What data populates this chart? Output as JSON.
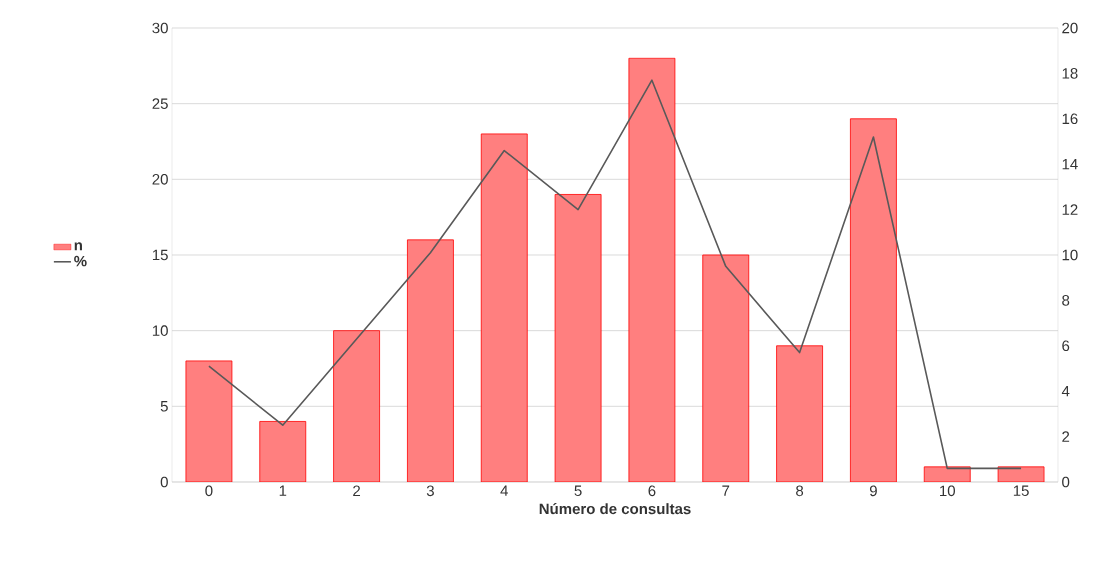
{
  "chart_data": {
    "type": "bar",
    "xlabel": "Número de consultas",
    "categories": [
      "0",
      "1",
      "2",
      "3",
      "4",
      "5",
      "6",
      "7",
      "8",
      "9",
      "10",
      "15"
    ],
    "series": [
      {
        "name": "n",
        "color": "#ff7f7f",
        "values": [
          8,
          4,
          10,
          16,
          23,
          19,
          28,
          15,
          9,
          24,
          1,
          1
        ]
      },
      {
        "name": "%",
        "type": "line",
        "axis": "y2",
        "color": "#595959",
        "values": [
          5.1,
          2.5,
          6.3,
          10.1,
          14.6,
          12.0,
          17.7,
          9.5,
          5.7,
          15.2,
          0.6,
          0.6
        ]
      }
    ],
    "ylim": [
      0,
      30
    ],
    "yticks": [
      0,
      5,
      10,
      15,
      20,
      25,
      30
    ],
    "y2lim": [
      0,
      20
    ],
    "y2ticks": [
      0,
      2,
      4,
      6,
      8,
      10,
      12,
      14,
      16,
      18,
      20
    ],
    "grid": "y",
    "legend": "left"
  }
}
